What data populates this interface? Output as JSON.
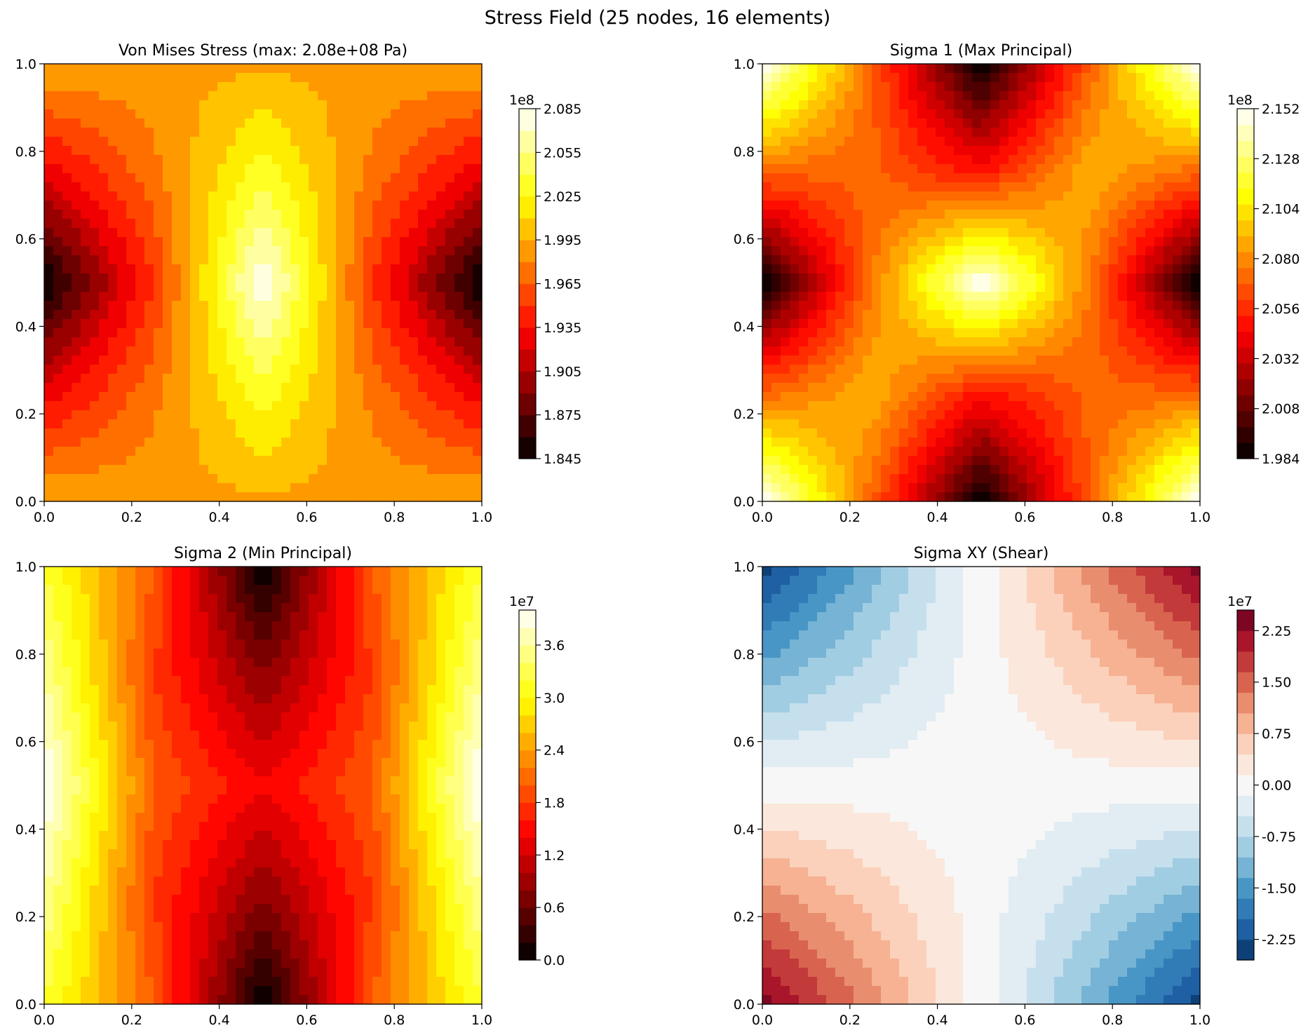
{
  "figure": {
    "suptitle": "Stress Field (25 nodes, 16 elements)"
  },
  "chart_data": [
    {
      "type": "heatmap",
      "title": "Von Mises Stress (max: 2.08e+08 Pa)",
      "colormap": "hot",
      "xlim": [
        0,
        1
      ],
      "ylim": [
        0,
        1
      ],
      "xticks": [
        "0.0",
        "0.2",
        "0.4",
        "0.6",
        "0.8",
        "1.0"
      ],
      "yticks": [
        "0.0",
        "0.2",
        "0.4",
        "0.6",
        "0.8",
        "1.0"
      ],
      "grid": [
        5,
        5
      ],
      "values": [
        [
          199500000.0,
          199000000.0,
          199200000.0,
          199000000.0,
          199500000.0
        ],
        [
          192500000.0,
          197500000.0,
          203500000.0,
          197500000.0,
          192500000.0
        ],
        [
          184500000.0,
          195000000.0,
          208500000.0,
          195000000.0,
          184500000.0
        ],
        [
          192500000.0,
          197500000.0,
          203500000.0,
          197500000.0,
          192500000.0
        ],
        [
          199500000.0,
          199000000.0,
          199200000.0,
          199000000.0,
          199500000.0
        ]
      ],
      "colorbar": {
        "exponent": "1e8",
        "min": 1.845,
        "max": 2.085,
        "levels": 16,
        "ticks": [
          "1.845",
          "1.875",
          "1.905",
          "1.935",
          "1.965",
          "1.995",
          "2.025",
          "2.055",
          "2.085"
        ]
      }
    },
    {
      "type": "heatmap",
      "title": "Sigma 1 (Max Principal)",
      "colormap": "hot",
      "xlim": [
        0,
        1
      ],
      "ylim": [
        0,
        1
      ],
      "xticks": [
        "0.0",
        "0.2",
        "0.4",
        "0.6",
        "0.8",
        "1.0"
      ],
      "yticks": [
        "0.0",
        "0.2",
        "0.4",
        "0.6",
        "0.8",
        "1.0"
      ],
      "grid": [
        5,
        5
      ],
      "values": [
        [
          215200000.0,
          207000000.0,
          198400000.0,
          207000000.0,
          215200000.0
        ],
        [
          207000000.0,
          209000000.0,
          205000000.0,
          207000000.0,
          207000000.0
        ],
        [
          198400000.0,
          207500000.0,
          215200000.0,
          207500000.0,
          198400000.0
        ],
        [
          207000000.0,
          207000000.0,
          205000000.0,
          209000000.0,
          207000000.0
        ],
        [
          215200000.0,
          207000000.0,
          198400000.0,
          207000000.0,
          215200000.0
        ]
      ],
      "colorbar": {
        "exponent": "1e8",
        "min": 1.984,
        "max": 2.152,
        "levels": 22,
        "ticks": [
          "1.984",
          "2.008",
          "2.032",
          "2.056",
          "2.080",
          "2.104",
          "2.128",
          "2.152"
        ]
      }
    },
    {
      "type": "heatmap",
      "title": "Sigma 2 (Min Principal)",
      "colormap": "hot",
      "xlim": [
        0,
        1
      ],
      "ylim": [
        0,
        1
      ],
      "xticks": [
        "0.0",
        "0.2",
        "0.4",
        "0.6",
        "0.8",
        "1.0"
      ],
      "yticks": [
        "0.0",
        "0.2",
        "0.4",
        "0.6",
        "0.8",
        "1.0"
      ],
      "grid": [
        5,
        5
      ],
      "values": [
        [
          32000000.0,
          20000000.0,
          0.0,
          20000000.0,
          32000000.0
        ],
        [
          36000000.0,
          18000000.0,
          8000000.0,
          18000000.0,
          36000000.0
        ],
        [
          40000000.0,
          20000000.0,
          14000000.0,
          20000000.0,
          40000000.0
        ],
        [
          36000000.0,
          18000000.0,
          8000000.0,
          18000000.0,
          36000000.0
        ],
        [
          32000000.0,
          20000000.0,
          0.0,
          20000000.0,
          32000000.0
        ]
      ],
      "colorbar": {
        "exponent": "1e7",
        "min": 0.0,
        "max": 4.0,
        "levels": 20,
        "ticks": [
          "0.0",
          "0.6",
          "1.2",
          "1.8",
          "2.4",
          "3.0",
          "3.6"
        ]
      }
    },
    {
      "type": "heatmap",
      "title": "Sigma XY (Shear)",
      "colormap": "RdBu_r",
      "xlim": [
        0,
        1
      ],
      "ylim": [
        0,
        1
      ],
      "xticks": [
        "0.0",
        "0.2",
        "0.4",
        "0.6",
        "0.8",
        "1.0"
      ],
      "yticks": [
        "0.0",
        "0.2",
        "0.4",
        "0.6",
        "0.8",
        "1.0"
      ],
      "grid": [
        5,
        5
      ],
      "values": [
        [
          24000000.0,
          12000000.0,
          0.0,
          -12000000.0,
          -24000000.0
        ],
        [
          12000000.0,
          6000000.0,
          0.0,
          -6000000.0,
          -12000000.0
        ],
        [
          0.0,
          0.0,
          0.0,
          0.0,
          0.0
        ],
        [
          -12000000.0,
          -6000000.0,
          0.0,
          6000000.0,
          12000000.0
        ],
        [
          -24000000.0,
          -12000000.0,
          0.0,
          12000000.0,
          24000000.0
        ]
      ],
      "colorbar": {
        "exponent": "1e7",
        "min": -2.55,
        "max": 2.55,
        "levels": 17,
        "ticks": [
          "-2.25",
          "-1.50",
          "-0.75",
          "0.00",
          "0.75",
          "1.50",
          "2.25"
        ]
      }
    }
  ]
}
